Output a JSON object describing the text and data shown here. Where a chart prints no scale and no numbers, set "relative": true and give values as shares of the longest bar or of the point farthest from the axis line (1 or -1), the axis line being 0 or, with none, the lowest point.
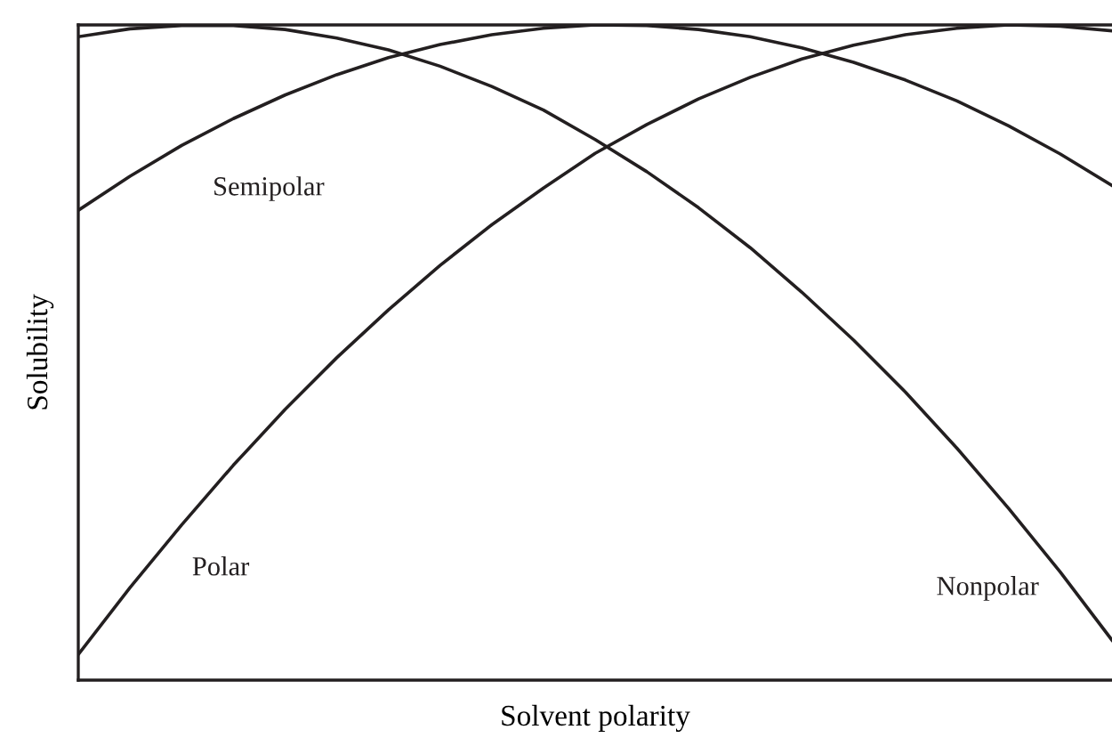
{
  "chart_data": {
    "type": "line",
    "relative": true,
    "xlabel": "Solvent polarity",
    "ylabel": "Solubility",
    "legend": false,
    "marker": "none",
    "line_style": "solid",
    "categories": [
      null,
      null,
      null,
      null,
      null,
      null,
      null,
      null,
      null,
      null,
      null,
      null,
      null,
      null,
      null,
      null,
      null,
      null,
      null,
      null,
      null
    ],
    "series": [
      {
        "name": "Semipolar",
        "color": "#231f20",
        "values": [
          0.717,
          0.769,
          0.816,
          0.857,
          0.893,
          0.924,
          0.95,
          0.97,
          0.985,
          0.995,
          1.0,
          0.999,
          0.993,
          0.982,
          0.965,
          0.943,
          0.916,
          0.884,
          0.846,
          0.803,
          0.755
        ]
      },
      {
        "name": "Polar",
        "color": "#231f20",
        "values": [
          0.039,
          0.141,
          0.237,
          0.328,
          0.413,
          0.492,
          0.565,
          0.633,
          0.695,
          0.751,
          0.804,
          0.848,
          0.887,
          0.92,
          0.948,
          0.969,
          0.985,
          0.995,
          1.0,
          0.998,
          0.991
        ]
      },
      {
        "name": "Nonpolar",
        "color": "#231f20",
        "values": [
          0.982,
          0.994,
          0.999,
          0.999,
          0.993,
          0.98,
          0.962,
          0.937,
          0.906,
          0.87,
          0.825,
          0.776,
          0.721,
          0.66,
          0.592,
          0.519,
          0.44,
          0.354,
          0.262,
          0.165,
          0.061
        ]
      }
    ]
  }
}
